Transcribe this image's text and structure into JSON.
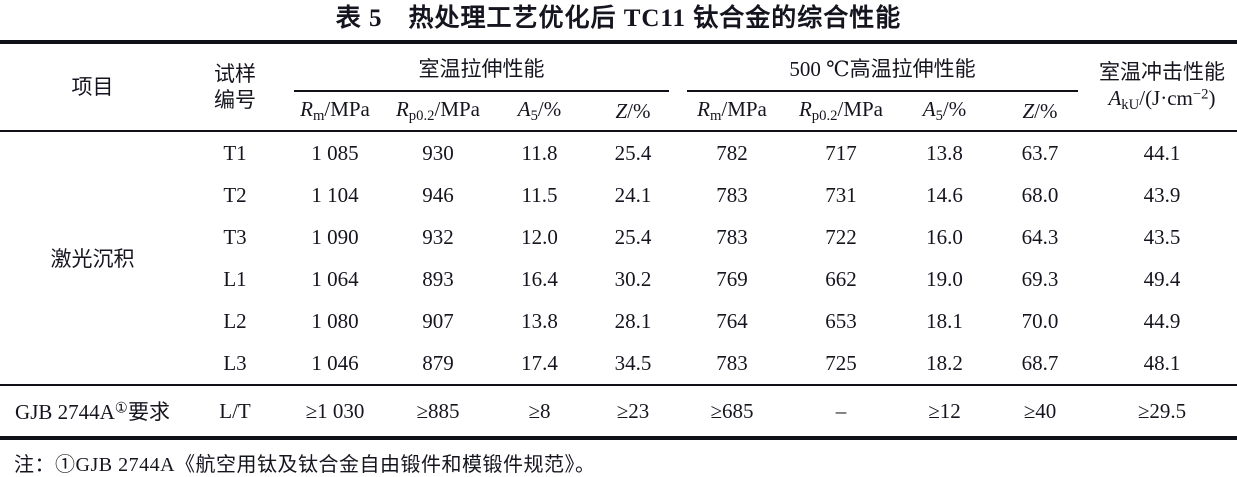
{
  "title": "表 5　热处理工艺优化后 TC11 钛合金的综合性能",
  "header": {
    "item": "项目",
    "sample": {
      "line1": "试样",
      "line2": "编号"
    },
    "group_rt": "室温拉伸性能",
    "group_ht": "500 ℃高温拉伸性能",
    "impact": {
      "line1": "室温冲击性能",
      "sym": "A",
      "sub": "kU",
      "mid": "/(J·cm",
      "sup": "−2",
      "end": ")"
    },
    "cols": {
      "rm": {
        "sym": "R",
        "sub": "m",
        "unit": "/MPa"
      },
      "rp": {
        "sym": "R",
        "sub": "p0.2",
        "unit": "/MPa"
      },
      "a5": {
        "sym": "A",
        "sub": "5",
        "unit": "/%"
      },
      "z": {
        "sym": "Z",
        "sub": "",
        "unit": "/%"
      }
    }
  },
  "table": {
    "group_label": "激光沉积",
    "rows": [
      {
        "id": "T1",
        "values": [
          "1 085",
          "930",
          "11.8",
          "25.4",
          "782",
          "717",
          "13.8",
          "63.7",
          "44.1"
        ]
      },
      {
        "id": "T2",
        "values": [
          "1 104",
          "946",
          "11.5",
          "24.1",
          "783",
          "731",
          "14.6",
          "68.0",
          "43.9"
        ]
      },
      {
        "id": "T3",
        "values": [
          "1 090",
          "932",
          "12.0",
          "25.4",
          "783",
          "722",
          "16.0",
          "64.3",
          "43.5"
        ]
      },
      {
        "id": "L1",
        "values": [
          "1 064",
          "893",
          "16.4",
          "30.2",
          "769",
          "662",
          "19.0",
          "69.3",
          "49.4"
        ]
      },
      {
        "id": "L2",
        "values": [
          "1 080",
          "907",
          "13.8",
          "28.1",
          "764",
          "653",
          "18.1",
          "70.0",
          "44.9"
        ]
      },
      {
        "id": "L3",
        "values": [
          "1 046",
          "879",
          "17.4",
          "34.5",
          "783",
          "725",
          "18.2",
          "68.7",
          "48.1"
        ]
      }
    ],
    "requirement": {
      "label_pre": "GJB 2744A",
      "label_sup": "①",
      "label_post": "要求",
      "id": "L/T",
      "values": [
        "≥1 030",
        "≥885",
        "≥8",
        "≥23",
        "≥685",
        "–",
        "≥12",
        "≥40",
        "≥29.5"
      ]
    }
  },
  "note": "注：①GJB 2744A《航空用钛及钛合金自由锻件和模锻件规范》。"
}
